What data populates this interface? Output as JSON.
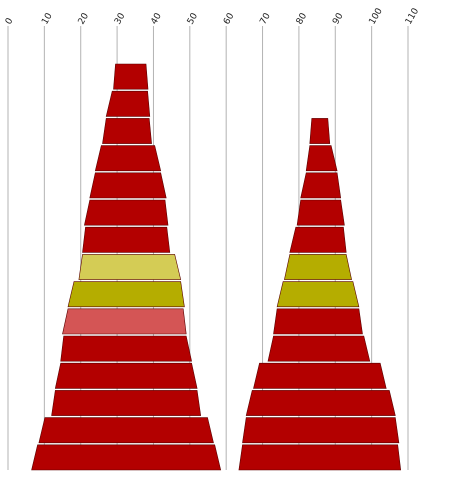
{
  "chart_data": {
    "type": "funnel",
    "title": "",
    "xlabel": "",
    "ylabel": "",
    "x_axis": {
      "ticks": [
        0,
        10,
        20,
        30,
        40,
        50,
        60,
        70,
        80,
        90,
        100,
        110
      ],
      "range": [
        0,
        110
      ],
      "position": "top",
      "label_rotation": -60
    },
    "grid": true,
    "legend": "none",
    "colors": {
      "red": "#b30000",
      "olive": "#b5ad00",
      "light_olive": "#d4cc55",
      "salmon": "#d45555",
      "edge": "#5a0000"
    },
    "funnels": [
      {
        "center": 32.5,
        "segments": [
          {
            "x_start": 6.5,
            "x_end": 58.5,
            "color": "red"
          },
          {
            "x_start": 8.5,
            "x_end": 56.5,
            "color": "red"
          },
          {
            "x_start": 12,
            "x_end": 53,
            "color": "red"
          },
          {
            "x_start": 13,
            "x_end": 52,
            "color": "red"
          },
          {
            "x_start": 14.5,
            "x_end": 50.5,
            "color": "red"
          },
          {
            "x_start": 15,
            "x_end": 49,
            "color": "salmon"
          },
          {
            "x_start": 16.5,
            "x_end": 48.5,
            "color": "olive"
          },
          {
            "x_start": 19.5,
            "x_end": 47.5,
            "color": "light_olive"
          },
          {
            "x_start": 20.5,
            "x_end": 44.5,
            "color": "red"
          },
          {
            "x_start": 21,
            "x_end": 44,
            "color": "red"
          },
          {
            "x_start": 22.5,
            "x_end": 43.5,
            "color": "red"
          },
          {
            "x_start": 24,
            "x_end": 42,
            "color": "red"
          },
          {
            "x_start": 26,
            "x_end": 39.5,
            "color": "red"
          },
          {
            "x_start": 27,
            "x_end": 39,
            "color": "red"
          },
          {
            "x_start": 29,
            "x_end": 38.5,
            "color": "red"
          }
        ]
      },
      {
        "center": 85,
        "segments": [
          {
            "x_start": 63.5,
            "x_end": 108,
            "color": "red"
          },
          {
            "x_start": 64.5,
            "x_end": 107.5,
            "color": "red"
          },
          {
            "x_start": 65.5,
            "x_end": 106.5,
            "color": "red"
          },
          {
            "x_start": 67.5,
            "x_end": 104,
            "color": "red"
          },
          {
            "x_start": 71.5,
            "x_end": 99.5,
            "color": "red"
          },
          {
            "x_start": 73,
            "x_end": 97.5,
            "color": "red"
          },
          {
            "x_start": 74,
            "x_end": 96.5,
            "color": "olive"
          },
          {
            "x_start": 76,
            "x_end": 94.5,
            "color": "olive"
          },
          {
            "x_start": 77.5,
            "x_end": 93,
            "color": "red"
          },
          {
            "x_start": 79.5,
            "x_end": 92.5,
            "color": "red"
          },
          {
            "x_start": 80.5,
            "x_end": 91.5,
            "color": "red"
          },
          {
            "x_start": 82,
            "x_end": 90.5,
            "color": "red"
          },
          {
            "x_start": 83,
            "x_end": 88.5,
            "color": "red"
          }
        ]
      }
    ]
  }
}
